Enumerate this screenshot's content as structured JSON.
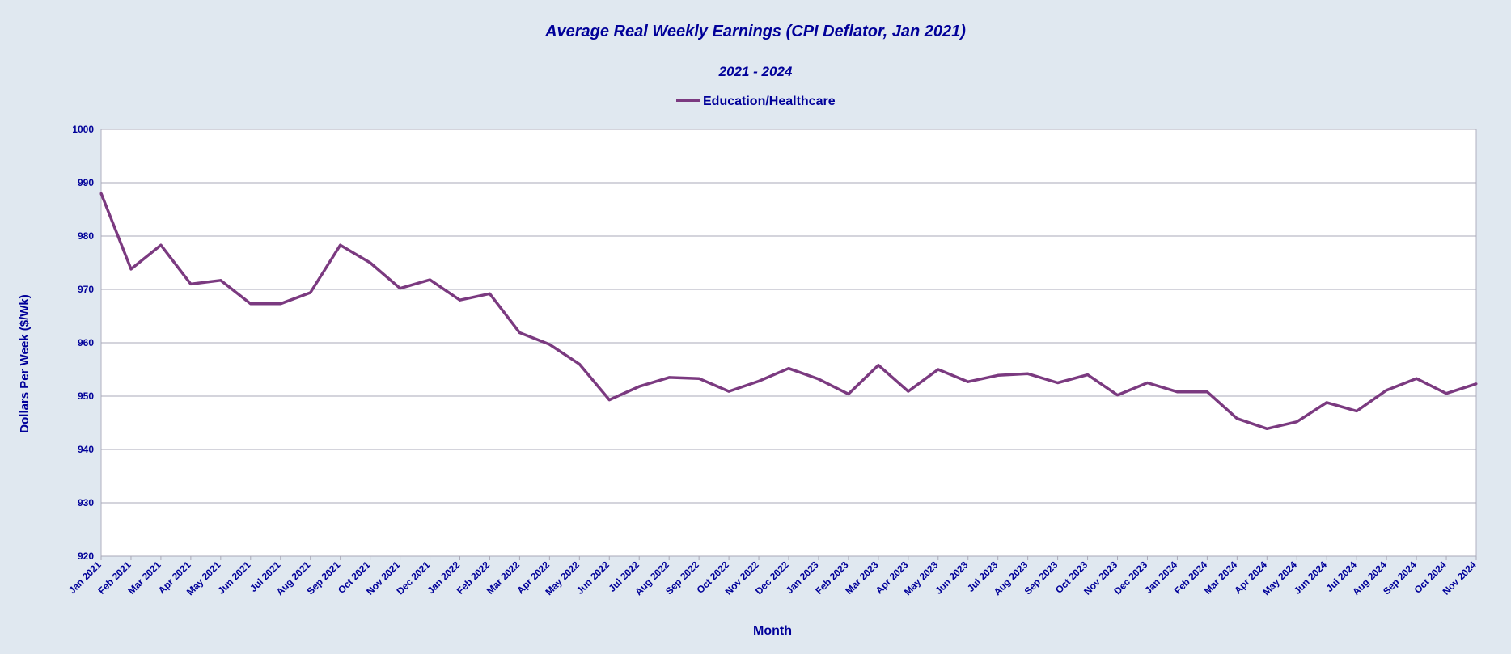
{
  "colors": {
    "background": "#e0e8f0",
    "plot_background": "#ffffff",
    "grid": "#a9a9b8",
    "text": "#000099",
    "series": "#7b3a80"
  },
  "chart_data": {
    "type": "line",
    "title": "Average Real Weekly Earnings (CPI Deflator, Jan 2021)",
    "subtitle": "2021 - 2024",
    "xlabel": "Month",
    "ylabel": "Dollars Per Week ($/Wk)",
    "ylim": [
      920,
      1000
    ],
    "yticks": [
      "920",
      "930",
      "940",
      "950",
      "960",
      "970",
      "980",
      "990",
      "1000"
    ],
    "grid": true,
    "legend_position": "top-center",
    "categories": [
      "Jan 2021",
      "Feb 2021",
      "Mar 2021",
      "Apr 2021",
      "May 2021",
      "Jun 2021",
      "Jul 2021",
      "Aug 2021",
      "Sep 2021",
      "Oct 2021",
      "Nov 2021",
      "Dec 2021",
      "Jan 2022",
      "Feb 2022",
      "Mar 2022",
      "Apr 2022",
      "May 2022",
      "Jun 2022",
      "Jul 2022",
      "Aug 2022",
      "Sep 2022",
      "Oct 2022",
      "Nov 2022",
      "Dec 2022",
      "Jan 2023",
      "Feb 2023",
      "Mar 2023",
      "Apr 2023",
      "May 2023",
      "Jun 2023",
      "Jul 2023",
      "Aug 2023",
      "Sep 2023",
      "Oct 2023",
      "Nov 2023",
      "Dec 2023",
      "Jan 2024",
      "Feb 2024",
      "Mar 2024",
      "Apr 2024",
      "May 2024",
      "Jun 2024",
      "Jul 2024",
      "Aug 2024",
      "Sep 2024",
      "Oct 2024",
      "Nov 2024"
    ],
    "series": [
      {
        "name": "Education/Healthcare",
        "values": [
          988.0,
          973.8,
          978.3,
          971.0,
          971.7,
          967.3,
          967.3,
          969.4,
          978.3,
          975.0,
          970.2,
          971.8,
          968.0,
          969.2,
          961.9,
          959.7,
          956.0,
          949.3,
          951.8,
          953.5,
          953.3,
          950.9,
          952.8,
          955.2,
          953.2,
          950.4,
          955.8,
          950.9,
          955.0,
          952.7,
          953.9,
          954.2,
          952.5,
          954.0,
          950.2,
          952.5,
          950.8,
          950.8,
          945.8,
          943.9,
          945.2,
          948.8,
          947.2,
          951.1,
          953.3,
          950.5,
          952.3
        ]
      }
    ]
  }
}
